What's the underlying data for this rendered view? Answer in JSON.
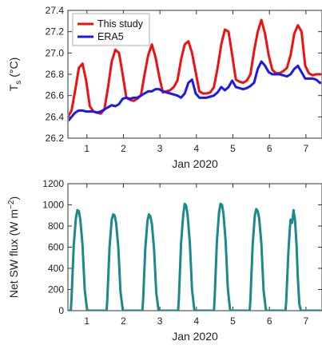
{
  "chart_data": [
    {
      "type": "line",
      "xlabel": "Jan 2020",
      "ylabel": "T",
      "ylabel_sub": "s",
      "ylabel_unit": " (°C)",
      "xlim": [
        0.48,
        7.44
      ],
      "ylim": [
        26.2,
        27.4
      ],
      "xticks": [
        1,
        2,
        3,
        4,
        5,
        6,
        7
      ],
      "yticks": [
        "26.2",
        "26.4",
        "26.6",
        "26.8",
        "27.0",
        "27.2",
        "27.4"
      ],
      "legend_position": "top-left",
      "series": [
        {
          "name": "This study",
          "color": "#ee1111",
          "x": [
            0.48,
            0.58,
            0.68,
            0.78,
            0.88,
            0.98,
            1.08,
            1.18,
            1.28,
            1.38,
            1.48,
            1.58,
            1.68,
            1.78,
            1.88,
            1.98,
            2.08,
            2.18,
            2.28,
            2.38,
            2.48,
            2.58,
            2.68,
            2.78,
            2.88,
            2.98,
            3.08,
            3.18,
            3.28,
            3.38,
            3.48,
            3.58,
            3.68,
            3.78,
            3.88,
            3.98,
            4.08,
            4.18,
            4.28,
            4.38,
            4.48,
            4.58,
            4.68,
            4.78,
            4.88,
            4.98,
            5.08,
            5.18,
            5.28,
            5.38,
            5.48,
            5.58,
            5.68,
            5.78,
            5.88,
            5.98,
            6.08,
            6.18,
            6.28,
            6.38,
            6.48,
            6.58,
            6.68,
            6.78,
            6.88,
            6.98,
            7.08,
            7.18,
            7.28,
            7.38,
            7.44
          ],
          "values": [
            26.4,
            26.46,
            26.65,
            26.86,
            26.9,
            26.74,
            26.5,
            26.45,
            26.44,
            26.43,
            26.47,
            26.68,
            26.92,
            27.03,
            27.0,
            26.8,
            26.58,
            26.56,
            26.55,
            26.57,
            26.6,
            26.8,
            26.98,
            27.08,
            26.96,
            26.78,
            26.63,
            26.64,
            26.65,
            26.68,
            26.74,
            26.94,
            27.08,
            27.11,
            27.0,
            26.82,
            26.64,
            26.62,
            26.62,
            26.63,
            26.68,
            26.86,
            27.08,
            27.22,
            27.2,
            26.98,
            26.75,
            26.73,
            26.72,
            26.74,
            26.8,
            27.02,
            27.2,
            27.31,
            27.18,
            26.98,
            26.84,
            26.81,
            26.81,
            26.83,
            26.86,
            26.98,
            27.18,
            27.26,
            27.2,
            26.88,
            26.81,
            26.79,
            26.8,
            26.8,
            26.8
          ]
        },
        {
          "name": "ERA5",
          "color": "#1a1aee",
          "x": [
            0.48,
            0.58,
            0.68,
            0.78,
            0.88,
            0.98,
            1.08,
            1.18,
            1.28,
            1.38,
            1.48,
            1.58,
            1.68,
            1.78,
            1.88,
            1.98,
            2.08,
            2.18,
            2.28,
            2.38,
            2.48,
            2.58,
            2.68,
            2.78,
            2.88,
            2.98,
            3.08,
            3.18,
            3.28,
            3.38,
            3.48,
            3.58,
            3.68,
            3.78,
            3.88,
            3.98,
            4.08,
            4.18,
            4.28,
            4.38,
            4.48,
            4.58,
            4.68,
            4.78,
            4.88,
            4.98,
            5.08,
            5.18,
            5.28,
            5.38,
            5.48,
            5.58,
            5.68,
            5.78,
            5.88,
            5.98,
            6.08,
            6.18,
            6.28,
            6.38,
            6.48,
            6.58,
            6.68,
            6.78,
            6.88,
            6.98,
            7.08,
            7.18,
            7.28,
            7.38,
            7.44
          ],
          "values": [
            26.36,
            26.4,
            26.44,
            26.46,
            26.46,
            26.45,
            26.45,
            26.45,
            26.44,
            26.45,
            26.47,
            26.49,
            26.51,
            26.5,
            26.52,
            26.57,
            26.58,
            26.57,
            26.58,
            26.58,
            26.6,
            26.62,
            26.64,
            26.64,
            26.66,
            26.66,
            26.64,
            26.63,
            26.62,
            26.61,
            26.6,
            26.58,
            26.62,
            26.72,
            26.75,
            26.62,
            26.58,
            26.58,
            26.58,
            26.59,
            26.6,
            26.63,
            26.68,
            26.65,
            26.68,
            26.74,
            26.68,
            26.67,
            26.66,
            26.67,
            26.69,
            26.72,
            26.85,
            26.92,
            26.88,
            26.82,
            26.8,
            26.8,
            26.8,
            26.79,
            26.78,
            26.8,
            26.85,
            26.88,
            26.82,
            26.76,
            26.76,
            26.76,
            26.75,
            26.72,
            26.72
          ]
        }
      ]
    },
    {
      "type": "line",
      "xlabel": "Jan 2020",
      "ylabel": "Net SW flux (W m",
      "ylabel_sup": "−2",
      "ylabel_tail": ")",
      "xlim": [
        0.48,
        7.44
      ],
      "ylim": [
        0,
        1200
      ],
      "xticks": [
        1,
        2,
        3,
        4,
        5,
        6,
        7
      ],
      "yticks": [
        "0",
        "200",
        "400",
        "600",
        "800",
        "1000",
        "1200"
      ],
      "grid": "none",
      "series": [
        {
          "color": "#1c8a8a",
          "x": [
            0.48,
            0.56,
            0.58,
            0.64,
            0.7,
            0.74,
            0.78,
            0.82,
            0.88,
            0.94,
            1.0,
            1.02,
            1.08,
            1.2,
            1.36,
            1.54,
            1.56,
            1.62,
            1.68,
            1.72,
            1.76,
            1.8,
            1.86,
            1.92,
            1.98,
            2.0,
            2.06,
            2.2,
            2.34,
            2.52,
            2.54,
            2.6,
            2.66,
            2.7,
            2.74,
            2.78,
            2.84,
            2.9,
            2.96,
            2.98,
            3.04,
            3.2,
            3.34,
            3.5,
            3.52,
            3.58,
            3.64,
            3.68,
            3.72,
            3.76,
            3.82,
            3.88,
            3.94,
            3.96,
            4.02,
            4.2,
            4.34,
            4.48,
            4.5,
            4.56,
            4.62,
            4.66,
            4.7,
            4.74,
            4.8,
            4.86,
            4.92,
            4.94,
            5.0,
            5.2,
            5.34,
            5.46,
            5.48,
            5.54,
            5.6,
            5.64,
            5.68,
            5.72,
            5.78,
            5.84,
            5.9,
            5.92,
            5.98,
            6.2,
            6.32,
            6.44,
            6.46,
            6.52,
            6.56,
            6.58,
            6.62,
            6.64,
            6.66,
            6.7,
            6.74,
            6.78,
            6.82,
            6.86,
            6.88,
            6.94,
            7.1,
            7.28,
            7.44
          ],
          "values": [
            0,
            0,
            120,
            620,
            880,
            950,
            940,
            860,
            620,
            200,
            20,
            0,
            0,
            0,
            0,
            0,
            110,
            600,
            860,
            910,
            900,
            830,
            600,
            180,
            15,
            0,
            0,
            0,
            0,
            0,
            100,
            590,
            850,
            910,
            890,
            820,
            580,
            170,
            10,
            0,
            0,
            0,
            0,
            0,
            120,
            640,
            910,
            1010,
            990,
            900,
            640,
            200,
            15,
            0,
            0,
            0,
            0,
            0,
            120,
            650,
            930,
            1010,
            1000,
            920,
            660,
            210,
            15,
            0,
            0,
            0,
            0,
            0,
            110,
            620,
            900,
            960,
            940,
            870,
            630,
            190,
            15,
            0,
            0,
            0,
            0,
            0,
            90,
            560,
            780,
            860,
            830,
            880,
            950,
            860,
            640,
            300,
            60,
            5,
            0,
            0,
            0,
            0,
            0
          ]
        }
      ]
    }
  ]
}
